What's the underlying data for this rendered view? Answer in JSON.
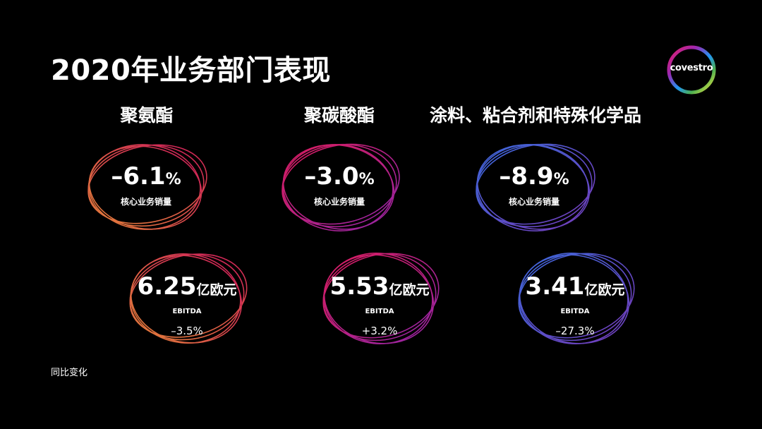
{
  "title": "2020年业务部门表现",
  "logo": {
    "text": "covestro"
  },
  "colors": {
    "background": "#000000",
    "text": "#ffffff",
    "polyurethanes_ring": [
      "#f08a3c",
      "#d81b60"
    ],
    "polycarbonates_ring": [
      "#e91e63",
      "#9c27b0"
    ],
    "coatings_ring": [
      "#3f6fe8",
      "#7b3fc4"
    ]
  },
  "segments": [
    {
      "name": "聚氨酯",
      "volume_change": "–6.1",
      "volume_unit": "%",
      "volume_label": "核心业务销量",
      "ebitda_value": "6.25",
      "ebitda_unit": "亿欧元",
      "ebitda_label": "EBITDA",
      "ebitda_change": "–3.5%"
    },
    {
      "name": "聚碳酸酯",
      "volume_change": "–3.0",
      "volume_unit": "%",
      "volume_label": "核心业务销量",
      "ebitda_value": "5.53",
      "ebitda_unit": "亿欧元",
      "ebitda_label": "EBITDA",
      "ebitda_change": "+3.2%"
    },
    {
      "name": "涂料、粘合剂和特殊化学品",
      "volume_change": "–8.9",
      "volume_unit": "%",
      "volume_label": "核心业务销量",
      "ebitda_value": "3.41",
      "ebitda_unit": "亿欧元",
      "ebitda_label": "EBITDA",
      "ebitda_change": "–27.3%"
    }
  ],
  "footnote": "同比变化"
}
